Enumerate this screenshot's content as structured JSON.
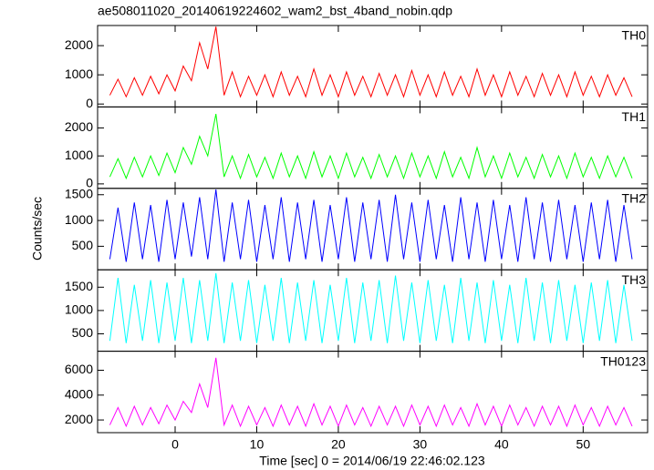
{
  "chart_data": {
    "type": "line",
    "title": "ae508011020_20140619224602_wam2_bst_4band_nobin.qdp",
    "x_label": "Time [sec] 0 = 2014/06/19 22:46:02.123",
    "y_label": "Counts/sec",
    "xlim": [
      -9.5,
      57.9
    ],
    "xticks": [
      0,
      10,
      20,
      30,
      40,
      50
    ],
    "x": [
      -8,
      -7,
      -6,
      -5,
      -4,
      -3,
      -2,
      -1,
      0,
      1,
      2,
      3,
      4,
      5,
      6,
      7,
      8,
      9,
      10,
      11,
      12,
      13,
      14,
      15,
      16,
      17,
      18,
      19,
      20,
      21,
      22,
      23,
      24,
      25,
      26,
      27,
      28,
      29,
      30,
      31,
      32,
      33,
      34,
      35,
      36,
      37,
      38,
      39,
      40,
      41,
      42,
      43,
      44,
      45,
      46,
      47,
      48,
      49,
      50,
      51,
      52,
      53,
      54,
      55,
      56
    ],
    "series": [
      {
        "name": "TH0",
        "color": "#ff0000",
        "ylim": [
          -100,
          2690
        ],
        "yticks": [
          0,
          1000,
          2000
        ],
        "values": [
          300,
          850,
          250,
          900,
          300,
          950,
          350,
          1000,
          450,
          1300,
          800,
          2100,
          1200,
          2650,
          300,
          1100,
          250,
          950,
          300,
          1000,
          250,
          1100,
          300,
          950,
          250,
          1200,
          300,
          1000,
          250,
          1100,
          300,
          950,
          250,
          1050,
          300,
          1000,
          250,
          1150,
          300,
          1000,
          250,
          1100,
          300,
          950,
          250,
          1200,
          300,
          1000,
          250,
          1100,
          300,
          950,
          250,
          1050,
          300,
          1000,
          250,
          1100,
          300,
          950,
          250,
          1000,
          300,
          900,
          250
        ]
      },
      {
        "name": "TH1",
        "color": "#00ff00",
        "ylim": [
          -160,
          2750
        ],
        "yticks": [
          0,
          1000,
          2000
        ],
        "values": [
          250,
          900,
          200,
          950,
          250,
          1000,
          300,
          1100,
          400,
          1300,
          700,
          1700,
          1000,
          2500,
          250,
          1000,
          200,
          1050,
          250,
          950,
          200,
          1100,
          250,
          1000,
          200,
          1150,
          250,
          1000,
          200,
          1100,
          250,
          950,
          200,
          1050,
          250,
          1000,
          200,
          1100,
          250,
          1000,
          200,
          1150,
          250,
          950,
          200,
          1300,
          250,
          1000,
          200,
          1100,
          250,
          950,
          200,
          1050,
          250,
          1000,
          200,
          1100,
          250,
          950,
          200,
          1000,
          250,
          950,
          200
        ]
      },
      {
        "name": "TH2",
        "color": "#0000ff",
        "ylim": [
          44,
          1623
        ],
        "yticks": [
          500,
          1000,
          1500
        ],
        "values": [
          250,
          1250,
          200,
          1350,
          250,
          1300,
          200,
          1400,
          250,
          1350,
          300,
          1450,
          250,
          1600,
          200,
          1350,
          250,
          1400,
          200,
          1300,
          250,
          1450,
          200,
          1350,
          250,
          1400,
          200,
          1300,
          250,
          1450,
          200,
          1350,
          250,
          1400,
          200,
          1500,
          250,
          1350,
          200,
          1400,
          250,
          1300,
          200,
          1450,
          250,
          1350,
          200,
          1400,
          250,
          1300,
          200,
          1450,
          250,
          1350,
          200,
          1400,
          250,
          1300,
          200,
          1350,
          250,
          1400,
          200,
          1300,
          250
        ]
      },
      {
        "name": "TH3",
        "color": "#00ffff",
        "ylim": [
          127,
          1873
        ],
        "yticks": [
          500,
          1000,
          1500
        ],
        "values": [
          350,
          1700,
          300,
          1550,
          350,
          1650,
          300,
          1600,
          350,
          1700,
          300,
          1650,
          350,
          1800,
          300,
          1600,
          350,
          1650,
          300,
          1550,
          350,
          1700,
          300,
          1600,
          350,
          1650,
          300,
          1550,
          350,
          1700,
          300,
          1600,
          350,
          1650,
          300,
          1750,
          350,
          1600,
          300,
          1650,
          350,
          1550,
          300,
          1700,
          350,
          1600,
          300,
          1650,
          350,
          1550,
          300,
          1700,
          350,
          1600,
          300,
          1650,
          350,
          1550,
          300,
          1600,
          350,
          1650,
          300,
          1550,
          350
        ]
      },
      {
        "name": "TH0123",
        "color": "#ff00ff",
        "ylim": [
          980,
          7530
        ],
        "yticks": [
          2000,
          4000,
          6000
        ],
        "values": [
          1600,
          3000,
          1500,
          3100,
          1600,
          3000,
          1700,
          3200,
          2000,
          3500,
          2600,
          4900,
          3000,
          7000,
          1600,
          3200,
          1500,
          3100,
          1600,
          3000,
          1500,
          3200,
          1600,
          3100,
          1500,
          3300,
          1600,
          3100,
          1500,
          3200,
          1600,
          3000,
          1500,
          3100,
          1600,
          3100,
          1500,
          3200,
          1600,
          3100,
          1500,
          3200,
          1600,
          3000,
          1500,
          3300,
          1600,
          3100,
          1500,
          3200,
          1600,
          3000,
          1500,
          3100,
          1600,
          3100,
          1500,
          3200,
          1600,
          3000,
          1500,
          3100,
          1600,
          3000,
          1500
        ]
      }
    ]
  }
}
